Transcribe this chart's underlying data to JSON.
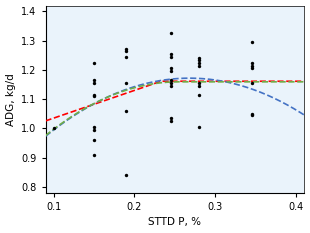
{
  "title": "",
  "xlabel": "STTD P, %",
  "ylabel": "ADG, kg/d",
  "xlim": [
    0.09,
    0.41
  ],
  "ylim": [
    0.78,
    1.42
  ],
  "xticks": [
    0.1,
    0.2,
    0.3,
    0.4
  ],
  "yticks": [
    0.8,
    0.9,
    1.0,
    1.1,
    1.2,
    1.3,
    1.4
  ],
  "scatter_x": [
    0.15,
    0.15,
    0.15,
    0.15,
    0.15,
    0.15,
    0.15,
    0.15,
    0.15,
    0.19,
    0.19,
    0.19,
    0.19,
    0.19,
    0.19,
    0.245,
    0.245,
    0.245,
    0.245,
    0.245,
    0.245,
    0.245,
    0.245,
    0.245,
    0.245,
    0.28,
    0.28,
    0.28,
    0.28,
    0.28,
    0.28,
    0.28,
    0.28,
    0.345,
    0.345,
    0.345,
    0.345,
    0.345,
    0.345,
    0.345,
    0.1
  ],
  "scatter_y": [
    1.225,
    1.165,
    1.155,
    1.115,
    1.11,
    1.005,
    0.995,
    0.96,
    0.91,
    1.27,
    1.265,
    1.245,
    1.155,
    1.06,
    0.84,
    1.325,
    1.255,
    1.245,
    1.205,
    1.195,
    1.165,
    1.155,
    1.145,
    1.035,
    1.025,
    1.24,
    1.235,
    1.225,
    1.215,
    1.155,
    1.145,
    1.115,
    1.005,
    1.295,
    1.225,
    1.215,
    1.205,
    1.155,
    1.05,
    1.045,
    1.0
  ],
  "BLL_breakpoint": 0.2327,
  "BLL_plateau": 1.1614,
  "BLL_slope": 0.95,
  "QP_a": 1.1719,
  "QP_b": -6.2619,
  "QP_peak": 0.2681,
  "BLQ_breakpoint": 0.2546,
  "BLQ_plateau": 1.1594,
  "BLQ_coeff": 6.7801,
  "color_BLL": "#FF0000",
  "color_QP": "#4472C4",
  "color_BLQ": "#70AD47",
  "scatter_color": "black",
  "scatter_size": 6,
  "line_style": "--",
  "line_width": 1.2,
  "xlabel_fontsize": 7.5,
  "ylabel_fontsize": 7.5,
  "tick_fontsize": 7,
  "bg_color": "#EAF3FB"
}
